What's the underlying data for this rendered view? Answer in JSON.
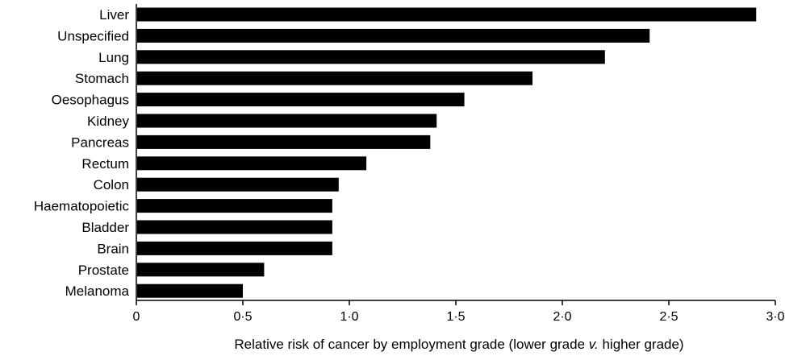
{
  "chart_data": {
    "type": "bar",
    "orientation": "horizontal",
    "title": "",
    "categories": [
      "Liver",
      "Unspecified",
      "Lung",
      "Stomach",
      "Oesophagus",
      "Kidney",
      "Pancreas",
      "Rectum",
      "Colon",
      "Haematopoietic",
      "Bladder",
      "Brain",
      "Prostate",
      "Melanoma"
    ],
    "values": [
      2.91,
      2.41,
      2.2,
      1.86,
      1.54,
      1.41,
      1.38,
      1.08,
      0.95,
      0.92,
      0.92,
      0.92,
      0.6,
      0.5
    ],
    "xlabel": {
      "before": "Relative risk of cancer by employment grade (lower grade ",
      "italic": "v.",
      "after": " higher grade)"
    },
    "ylabel": "",
    "xlim": [
      0,
      3
    ],
    "xticks": [
      {
        "value": 0,
        "label": "0"
      },
      {
        "value": 0.5,
        "label": "0·5"
      },
      {
        "value": 1,
        "label": "1·0"
      },
      {
        "value": 1.5,
        "label": "1·5"
      },
      {
        "value": 2,
        "label": "2·0"
      },
      {
        "value": 2.5,
        "label": "2·5"
      },
      {
        "value": 3,
        "label": "3·0"
      }
    ],
    "grid": false,
    "legend": "none",
    "bar_color": "#000000",
    "axis_color": "#000000"
  }
}
